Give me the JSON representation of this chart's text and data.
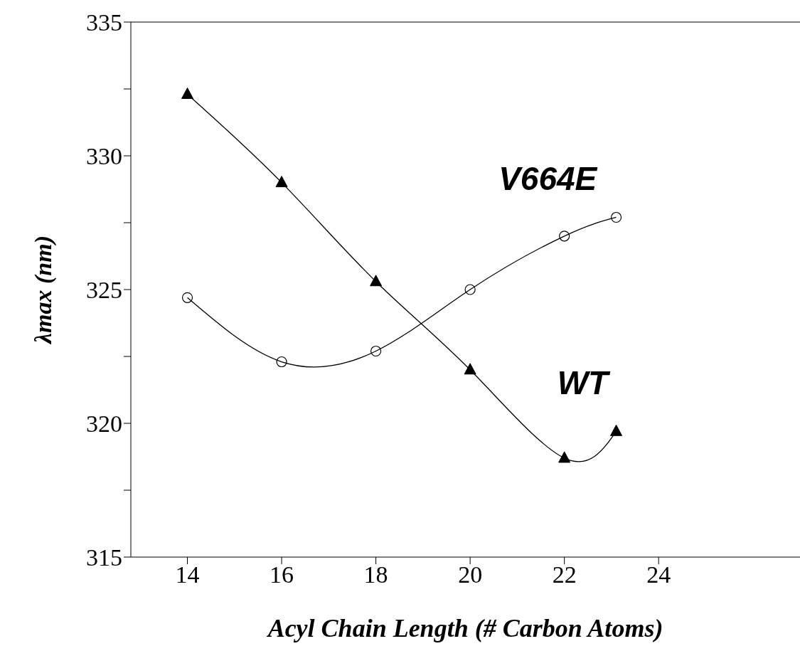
{
  "chart_data": {
    "type": "line",
    "xlabel": "Acyl Chain Length (# Carbon Atoms)",
    "ylabel": "λmax (nm)",
    "xlim": [
      12.8,
      27
    ],
    "xticks": [
      14,
      16,
      18,
      20,
      22,
      24
    ],
    "ylim": [
      315,
      335
    ],
    "yticks": [
      315,
      {
        "value": 317.5,
        "label": null
      },
      320,
      {
        "value": 322.5,
        "label": null
      },
      325,
      {
        "value": 327.5,
        "label": null
      },
      330,
      {
        "value": 332.5,
        "label": null
      },
      335
    ],
    "line_style": "solid",
    "series": [
      {
        "name": "WT",
        "color": "#000000",
        "marker": "triangle",
        "x": [
          14,
          16,
          18,
          20,
          22,
          23.1
        ],
        "values": [
          332.3,
          329.0,
          325.3,
          322.0,
          318.7,
          319.7
        ]
      },
      {
        "name": "V664E",
        "color": "#000000",
        "marker": "circle",
        "x": [
          14,
          16,
          18,
          20,
          22,
          23.1
        ],
        "values": [
          324.7,
          322.3,
          322.7,
          325.0,
          327.0,
          327.7
        ]
      }
    ]
  }
}
